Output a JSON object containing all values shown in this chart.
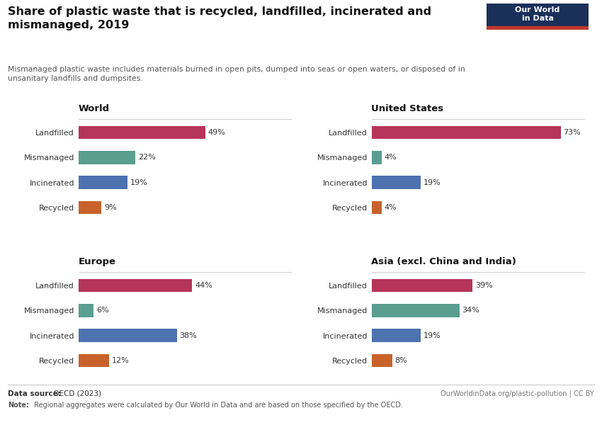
{
  "title": "Share of plastic waste that is recycled, landfilled, incinerated and\nmismanaged, 2019",
  "subtitle": "Mismanaged plastic waste includes materials burned in open pits, dumped into seas or open waters, or disposed of in\nunsanitary landfills and dumpsites.",
  "footer_datasource_bold": "Data source:",
  "footer_datasource_rest": " OECD (2023)",
  "footer_note_bold": "Note:",
  "footer_note_rest": " Regional aggregates were calculated by Our World in Data and are based on those specified by the OECD.",
  "footer_right": "OurWorldinData.org/plastic-pollution | CC BY",
  "colors": {
    "Landfilled": "#b5345a",
    "Mismanaged": "#5a9e8f",
    "Incinerated": "#4c72b0",
    "Recycled": "#c8622a"
  },
  "categories": [
    "Landfilled",
    "Mismanaged",
    "Incinerated",
    "Recycled"
  ],
  "panels": [
    {
      "title": "World",
      "values": [
        49,
        22,
        19,
        9
      ]
    },
    {
      "title": "United States",
      "values": [
        73,
        4,
        19,
        4
      ]
    },
    {
      "title": "Europe",
      "values": [
        44,
        6,
        38,
        12
      ]
    },
    {
      "title": "Asia (excl. China and India)",
      "values": [
        39,
        34,
        19,
        8
      ]
    }
  ],
  "xlim": 82,
  "background_color": "#ffffff",
  "logo_navy": "#1a2f5a",
  "logo_red": "#c0392b",
  "logo_text": "Our World\nin Data"
}
